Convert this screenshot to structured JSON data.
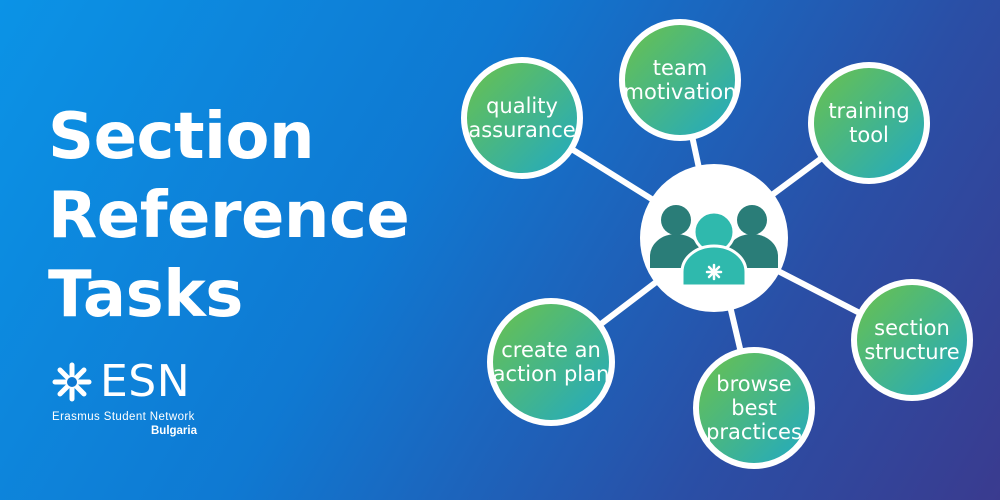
{
  "title": {
    "line1": "Section",
    "line2": "Reference",
    "line3": "Tasks"
  },
  "logo": {
    "name": "ESN",
    "subtitle": "Erasmus Student Network",
    "country": "Bulgaria"
  },
  "hub": {
    "icon": "people-group-icon"
  },
  "nodes": [
    {
      "name": "node-quality-assurance",
      "lines": [
        "quality",
        "assurance"
      ]
    },
    {
      "name": "node-team-motivation",
      "lines": [
        "team",
        "motivation"
      ]
    },
    {
      "name": "node-training-tool",
      "lines": [
        "training",
        "tool"
      ]
    },
    {
      "name": "node-create-an-action-plan",
      "lines": [
        "create an",
        "action plan"
      ]
    },
    {
      "name": "node-browse-best-practices",
      "lines": [
        "browse",
        "best",
        "practices"
      ]
    },
    {
      "name": "node-section-structure",
      "lines": [
        "section",
        "structure"
      ]
    }
  ],
  "colors": {
    "node_gradient_start": "#6cc24a",
    "node_gradient_end": "#1fa9c6",
    "hub_fill": "#ffffff",
    "people_back": "#2a7d78",
    "people_front": "#2fb9ad",
    "connector": "#ffffff"
  }
}
